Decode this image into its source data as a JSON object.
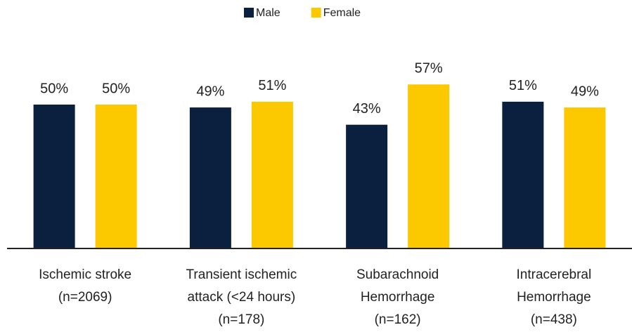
{
  "chart_data": {
    "type": "bar",
    "categories": [
      "Ischemic stroke\n(n=2069)",
      "Transient ischemic\nattack (<24 hours)\n(n=178)",
      "Subarachnoid\nHemorrhage\n(n=162)",
      "Intracerebral\nHemorrhage\n(n=438)"
    ],
    "series": [
      {
        "name": "Male",
        "color": "#0b1f3f",
        "values": [
          50,
          49,
          43,
          51
        ],
        "value_labels": [
          "50%",
          "49%",
          "43%",
          "51%"
        ]
      },
      {
        "name": "Female",
        "color": "#fcc800",
        "values": [
          50,
          51,
          57,
          49
        ],
        "value_labels": [
          "50%",
          "51%",
          "57%",
          "49%"
        ]
      }
    ],
    "ylim": [
      0,
      60
    ],
    "legend": "top"
  }
}
